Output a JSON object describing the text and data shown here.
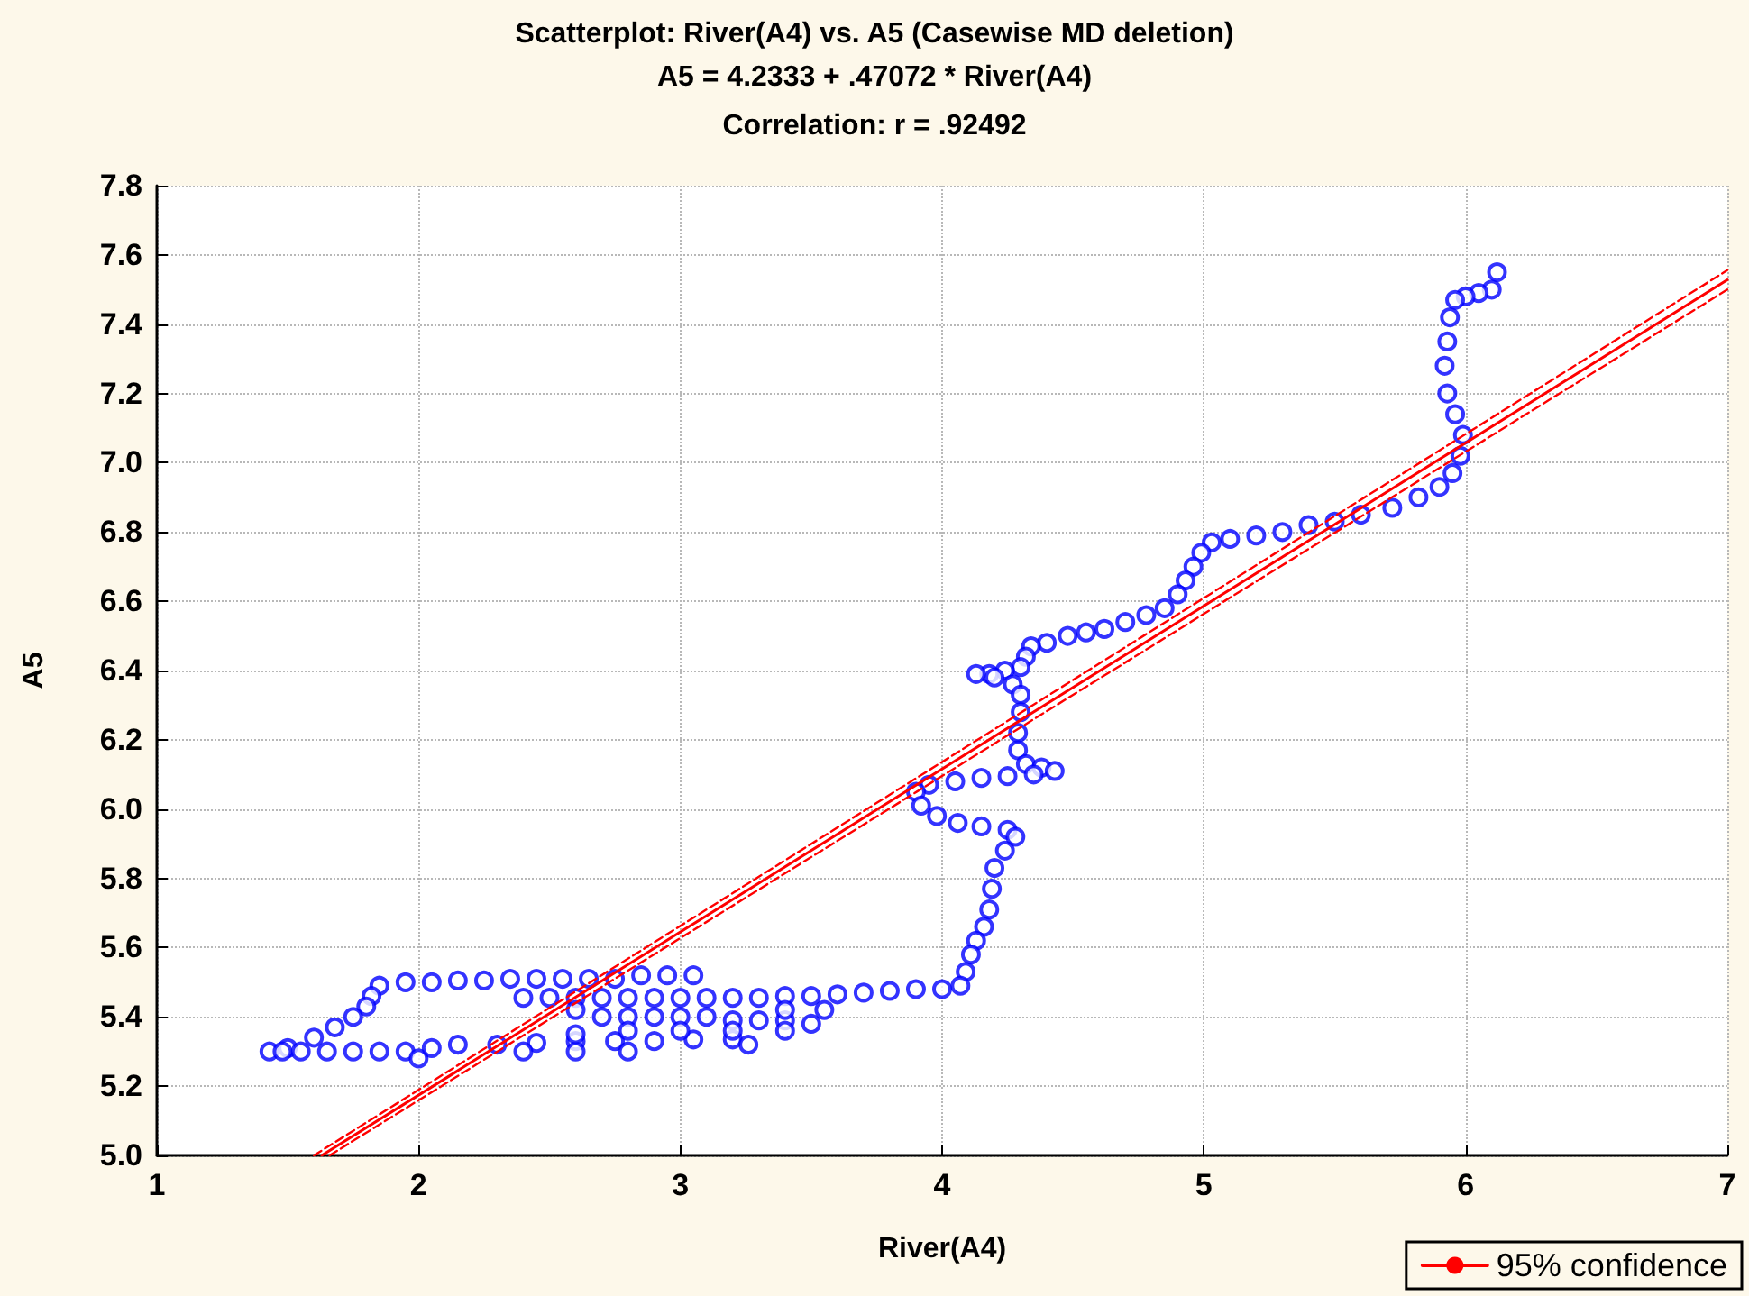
{
  "chart_data": {
    "type": "scatter",
    "title": "Scatterplot: River(A4) vs. A5 (Casewise MD deletion)",
    "subtitle": "A5 = 4.2333 + .47072 * River(A4)",
    "annotations": [
      "Correlation: r = .92492"
    ],
    "xlabel": "River(A4)",
    "ylabel": "A5",
    "xlim": [
      1,
      7
    ],
    "xticks": [
      1,
      2,
      3,
      4,
      5,
      6,
      7
    ],
    "ylim": [
      5.0,
      7.8
    ],
    "yticks": [
      {
        "value": 5.0,
        "label": "5.0"
      },
      {
        "value": 5.2,
        "label": "5.2"
      },
      {
        "value": 5.4,
        "label": "5.4"
      },
      {
        "value": 5.6,
        "label": "5.6"
      },
      {
        "value": 5.8,
        "label": "5.8"
      },
      {
        "value": 6.0,
        "label": "6.0"
      },
      {
        "value": 6.2,
        "label": "6.2"
      },
      {
        "value": 6.4,
        "label": "6.4"
      },
      {
        "value": 6.6,
        "label": "6.6"
      },
      {
        "value": 6.8,
        "label": "6.8"
      },
      {
        "value": 7.0,
        "label": "7.0"
      },
      {
        "value": 7.2,
        "label": "7.2"
      },
      {
        "value": 7.4,
        "label": "7.4"
      },
      {
        "value": 7.6,
        "label": "7.6"
      },
      {
        "value": 7.8,
        "label": "7.8"
      }
    ],
    "grid": true,
    "legend": "bottom right",
    "marker": "circle",
    "series": [
      {
        "color": "#0000ff",
        "x": [
          6.12,
          6.1,
          6.05,
          6.0,
          5.96,
          5.94,
          5.93,
          5.92,
          5.93,
          5.96,
          5.99,
          5.98,
          5.95,
          5.9,
          5.82,
          5.72,
          5.6,
          5.5,
          5.4,
          5.3,
          5.2,
          5.1,
          5.03,
          4.99,
          4.96,
          4.93,
          4.9,
          4.85,
          4.78,
          4.7,
          4.62,
          4.55,
          4.48,
          4.4,
          4.34,
          4.32,
          4.3,
          4.24,
          4.18,
          4.13,
          4.2,
          4.27,
          4.3,
          4.3,
          4.29,
          4.29,
          4.32,
          4.38,
          4.43,
          4.35,
          4.25,
          4.15,
          4.05,
          3.95,
          3.9,
          3.92,
          3.98,
          4.06,
          4.15,
          4.25,
          4.28,
          4.24,
          4.2,
          4.19,
          4.18,
          4.16,
          4.13,
          4.11,
          4.09,
          4.07,
          4.0,
          3.9,
          3.8,
          3.7,
          3.6,
          3.5,
          3.4,
          3.3,
          3.2,
          3.1,
          3.0,
          2.9,
          2.8,
          2.7,
          2.6,
          2.5,
          2.4,
          1.85,
          1.95,
          2.05,
          2.15,
          2.25,
          2.35,
          2.45,
          2.55,
          2.65,
          2.75,
          2.85,
          2.95,
          3.05,
          1.82,
          1.8,
          1.75,
          1.68,
          1.6,
          1.5,
          1.43,
          1.48,
          1.55,
          1.65,
          1.75,
          1.85,
          1.95,
          2.7,
          2.8,
          2.9,
          3.0,
          3.1,
          3.2,
          3.3,
          3.4,
          3.5,
          2.6,
          3.4,
          3.55,
          2.0,
          2.05,
          2.15,
          2.3,
          2.45,
          2.6,
          2.75,
          2.9,
          3.05,
          3.2,
          3.26,
          2.4,
          2.6,
          2.8,
          2.6,
          2.8,
          3.0,
          3.2,
          3.4
        ],
        "values": [
          7.55,
          7.5,
          7.49,
          7.48,
          7.47,
          7.42,
          7.35,
          7.28,
          7.2,
          7.14,
          7.08,
          7.02,
          6.97,
          6.93,
          6.9,
          6.87,
          6.85,
          6.83,
          6.82,
          6.8,
          6.79,
          6.78,
          6.77,
          6.74,
          6.7,
          6.66,
          6.62,
          6.58,
          6.56,
          6.54,
          6.52,
          6.51,
          6.5,
          6.48,
          6.47,
          6.44,
          6.41,
          6.4,
          6.39,
          6.39,
          6.38,
          6.36,
          6.33,
          6.28,
          6.22,
          6.17,
          6.13,
          6.12,
          6.11,
          6.1,
          6.095,
          6.09,
          6.08,
          6.07,
          6.05,
          6.01,
          5.98,
          5.96,
          5.95,
          5.94,
          5.92,
          5.88,
          5.83,
          5.77,
          5.71,
          5.66,
          5.62,
          5.58,
          5.53,
          5.49,
          5.48,
          5.48,
          5.475,
          5.47,
          5.465,
          5.46,
          5.46,
          5.455,
          5.455,
          5.455,
          5.455,
          5.455,
          5.455,
          5.455,
          5.455,
          5.455,
          5.455,
          5.49,
          5.5,
          5.5,
          5.505,
          5.505,
          5.51,
          5.51,
          5.51,
          5.51,
          5.51,
          5.52,
          5.52,
          5.52,
          5.46,
          5.43,
          5.4,
          5.37,
          5.34,
          5.31,
          5.3,
          5.3,
          5.3,
          5.3,
          5.3,
          5.3,
          5.3,
          5.4,
          5.4,
          5.4,
          5.4,
          5.4,
          5.39,
          5.39,
          5.39,
          5.38,
          5.42,
          5.42,
          5.42,
          5.28,
          5.31,
          5.32,
          5.32,
          5.325,
          5.33,
          5.33,
          5.33,
          5.335,
          5.335,
          5.32,
          5.3,
          5.3,
          5.3,
          5.35,
          5.36,
          5.36,
          5.36,
          5.36
        ]
      },
      {
        "type": "line",
        "name": "95% confidence",
        "color": "#ff0000",
        "line_style": "solid",
        "marker": "none",
        "x": [
          1.63,
          7
        ],
        "values": [
          5.0,
          7.528
        ]
      },
      {
        "type": "line",
        "color": "#ff0000",
        "line_style": "dashed",
        "marker": "none",
        "x": [
          1.66,
          7
        ],
        "values": [
          5.0,
          7.5
        ]
      },
      {
        "type": "line",
        "color": "#ff0000",
        "line_style": "dashed",
        "marker": "none",
        "x": [
          1.6,
          7
        ],
        "values": [
          5.0,
          7.556
        ]
      }
    ]
  }
}
